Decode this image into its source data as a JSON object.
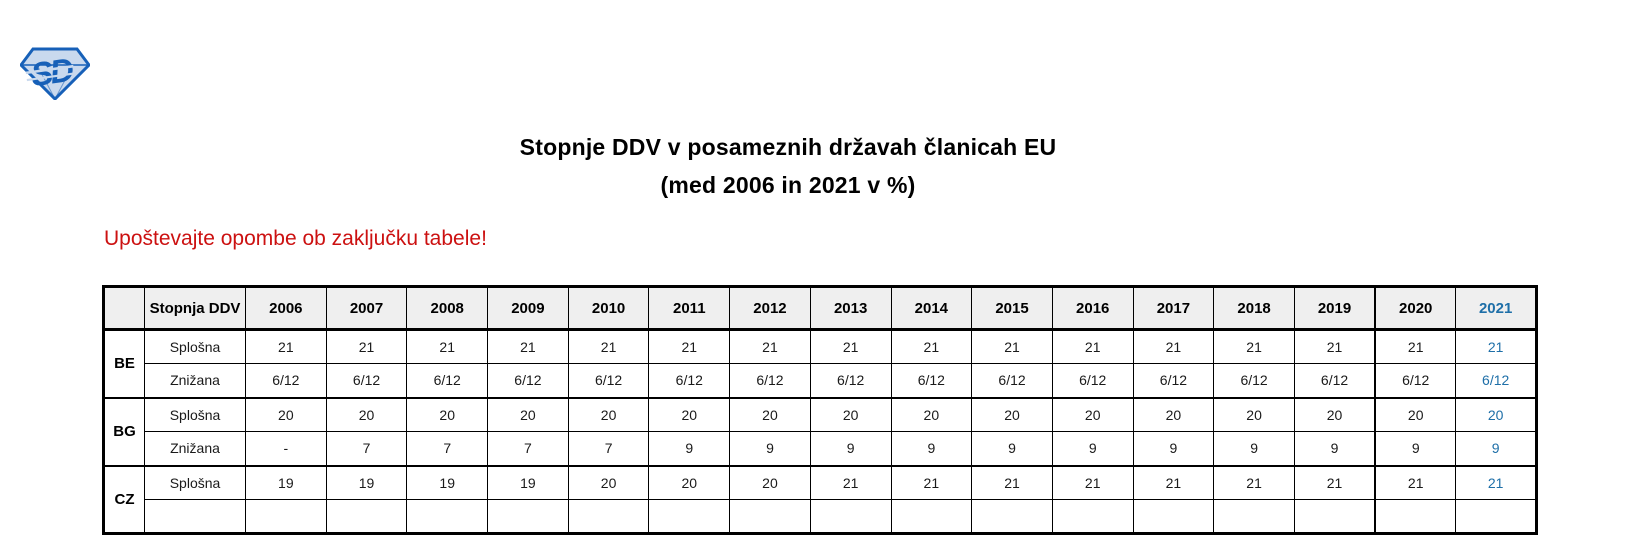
{
  "logo": {
    "monogram": "SD",
    "outline_color": "#1760B8",
    "fill_color": "#C9D9EE"
  },
  "title": {
    "line1": "Stopnje DDV v posameznih državah članicah EU",
    "line2": "(med 2006 in 2021 v %)"
  },
  "note": {
    "text": "Upoštevajte opombe ob zaključku tabele!",
    "color": "#CC1111"
  },
  "table": {
    "corner_label": "",
    "rate_header": "Stopnja DDV",
    "years": [
      "2006",
      "2007",
      "2008",
      "2009",
      "2010",
      "2011",
      "2012",
      "2013",
      "2014",
      "2015",
      "2016",
      "2017",
      "2018",
      "2019",
      "2020",
      "2021"
    ],
    "highlight_year_index": 15,
    "thick_separator_year_index": 14,
    "colors": {
      "header_bg": "#EFEFEF",
      "highlight_text": "#1E6FA8",
      "border": "#000000"
    },
    "groups": [
      {
        "code": "BE",
        "rows": [
          {
            "label": "Splošna",
            "values": [
              "21",
              "21",
              "21",
              "21",
              "21",
              "21",
              "21",
              "21",
              "21",
              "21",
              "21",
              "21",
              "21",
              "21",
              "21",
              "21"
            ]
          },
          {
            "label": "Znižana",
            "values": [
              "6/12",
              "6/12",
              "6/12",
              "6/12",
              "6/12",
              "6/12",
              "6/12",
              "6/12",
              "6/12",
              "6/12",
              "6/12",
              "6/12",
              "6/12",
              "6/12",
              "6/12",
              "6/12"
            ]
          }
        ]
      },
      {
        "code": "BG",
        "rows": [
          {
            "label": "Splošna",
            "values": [
              "20",
              "20",
              "20",
              "20",
              "20",
              "20",
              "20",
              "20",
              "20",
              "20",
              "20",
              "20",
              "20",
              "20",
              "20",
              "20"
            ]
          },
          {
            "label": "Znižana",
            "values": [
              "-",
              "7",
              "7",
              "7",
              "7",
              "9",
              "9",
              "9",
              "9",
              "9",
              "9",
              "9",
              "9",
              "9",
              "9",
              "9"
            ]
          }
        ]
      },
      {
        "code": "CZ",
        "rows": [
          {
            "label": "Splošna",
            "values": [
              "19",
              "19",
              "19",
              "19",
              "20",
              "20",
              "20",
              "21",
              "21",
              "21",
              "21",
              "21",
              "21",
              "21",
              "21",
              "21"
            ]
          },
          {
            "label": "",
            "values": [
              "",
              "",
              "",
              "",
              "",
              "",
              "",
              "",
              "",
              "",
              "",
              "",
              "",
              "",
              "",
              ""
            ],
            "partial": true
          }
        ]
      }
    ]
  }
}
